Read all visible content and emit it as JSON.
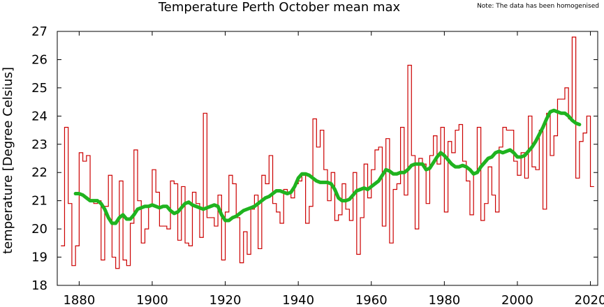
{
  "chart_data": {
    "type": "line",
    "title": "Temperature Perth October mean max",
    "note": "Note: The data has been homogenised",
    "ylabel": "temperature [Degree Celsius]",
    "xlim": [
      1874,
      2022
    ],
    "xticks": [
      1880,
      1900,
      1920,
      1940,
      1960,
      1980,
      2000,
      2020
    ],
    "ylim": [
      18,
      27
    ],
    "yticks": [
      18,
      19,
      20,
      21,
      22,
      23,
      24,
      25,
      26,
      27
    ],
    "series": [
      {
        "style": "step",
        "color": "#cc0000",
        "x": [
          1875,
          1876,
          1877,
          1878,
          1879,
          1880,
          1881,
          1882,
          1883,
          1884,
          1885,
          1886,
          1887,
          1888,
          1889,
          1890,
          1891,
          1892,
          1893,
          1894,
          1895,
          1896,
          1897,
          1898,
          1899,
          1900,
          1901,
          1902,
          1903,
          1904,
          1905,
          1906,
          1907,
          1908,
          1909,
          1910,
          1911,
          1912,
          1913,
          1914,
          1915,
          1916,
          1917,
          1918,
          1919,
          1920,
          1921,
          1922,
          1923,
          1924,
          1925,
          1926,
          1927,
          1928,
          1929,
          1930,
          1931,
          1932,
          1933,
          1934,
          1935,
          1936,
          1937,
          1938,
          1939,
          1940,
          1941,
          1942,
          1943,
          1944,
          1945,
          1946,
          1947,
          1948,
          1949,
          1950,
          1951,
          1952,
          1953,
          1954,
          1955,
          1956,
          1957,
          1958,
          1959,
          1960,
          1961,
          1962,
          1963,
          1964,
          1965,
          1966,
          1967,
          1968,
          1969,
          1970,
          1971,
          1972,
          1973,
          1974,
          1975,
          1976,
          1977,
          1978,
          1979,
          1980,
          1981,
          1982,
          1983,
          1984,
          1985,
          1986,
          1987,
          1988,
          1989,
          1990,
          1991,
          1992,
          1993,
          1994,
          1995,
          1996,
          1997,
          1998,
          1999,
          2000,
          2001,
          2002,
          2003,
          2004,
          2005,
          2006,
          2007,
          2008,
          2009,
          2010,
          2011,
          2012,
          2013,
          2014,
          2015,
          2016,
          2017,
          2018,
          2019,
          2020
        ],
        "values": [
          19.4,
          23.6,
          20.9,
          18.7,
          19.4,
          22.7,
          22.4,
          22.6,
          21.0,
          20.9,
          21.0,
          18.9,
          20.8,
          21.9,
          19.0,
          18.6,
          21.7,
          18.9,
          18.7,
          20.2,
          22.8,
          21.0,
          19.5,
          20.0,
          20.8,
          22.1,
          21.3,
          20.1,
          20.1,
          20.0,
          21.7,
          21.6,
          19.6,
          21.5,
          19.5,
          19.4,
          21.3,
          20.9,
          19.7,
          24.1,
          20.4,
          20.4,
          20.1,
          21.2,
          18.9,
          20.6,
          21.9,
          21.6,
          20.4,
          18.8,
          19.9,
          19.1,
          20.7,
          21.2,
          19.3,
          21.9,
          21.6,
          22.6,
          20.9,
          20.6,
          20.2,
          21.4,
          21.3,
          21.1,
          21.6,
          21.7,
          21.9,
          20.2,
          20.8,
          23.9,
          22.9,
          23.5,
          22.1,
          21.0,
          22.0,
          20.3,
          20.5,
          21.6,
          20.7,
          20.3,
          22.0,
          19.1,
          20.4,
          22.3,
          21.1,
          22.1,
          22.8,
          22.9,
          20.1,
          23.2,
          19.5,
          21.4,
          21.6,
          23.6,
          21.2,
          25.8,
          22.6,
          20.0,
          22.5,
          22.3,
          20.9,
          22.6,
          23.3,
          22.3,
          23.6,
          20.6,
          23.1,
          22.7,
          23.5,
          23.7,
          22.4,
          21.7,
          20.5,
          22.0,
          23.6,
          20.3,
          20.9,
          22.2,
          21.2,
          20.6,
          22.9,
          23.6,
          23.5,
          23.5,
          22.4,
          21.9,
          22.7,
          21.8,
          24.0,
          22.2,
          22.1,
          23.5,
          20.7,
          24.1,
          22.6,
          23.3,
          24.6,
          24.6,
          25.0,
          23.9,
          26.8,
          21.8,
          23.1,
          23.4,
          24.0,
          21.5
        ]
      },
      {
        "style": "smooth",
        "color": "#1fb31f",
        "x": [
          1879,
          1880,
          1881,
          1882,
          1883,
          1884,
          1885,
          1886,
          1887,
          1888,
          1889,
          1890,
          1891,
          1892,
          1893,
          1894,
          1895,
          1896,
          1897,
          1898,
          1899,
          1900,
          1901,
          1902,
          1903,
          1904,
          1905,
          1906,
          1907,
          1908,
          1909,
          1910,
          1911,
          1912,
          1913,
          1914,
          1915,
          1916,
          1917,
          1918,
          1919,
          1920,
          1921,
          1922,
          1923,
          1924,
          1925,
          1926,
          1927,
          1928,
          1929,
          1930,
          1931,
          1932,
          1933,
          1934,
          1935,
          1936,
          1937,
          1938,
          1939,
          1940,
          1941,
          1942,
          1943,
          1944,
          1945,
          1946,
          1947,
          1948,
          1949,
          1950,
          1951,
          1952,
          1953,
          1954,
          1955,
          1956,
          1957,
          1958,
          1959,
          1960,
          1961,
          1962,
          1963,
          1964,
          1965,
          1966,
          1967,
          1968,
          1969,
          1970,
          1971,
          1972,
          1973,
          1974,
          1975,
          1976,
          1977,
          1978,
          1979,
          1980,
          1981,
          1982,
          1983,
          1984,
          1985,
          1986,
          1987,
          1988,
          1989,
          1990,
          1991,
          1992,
          1993,
          1994,
          1995,
          1996,
          1997,
          1998,
          1999,
          2000,
          2001,
          2002,
          2003,
          2004,
          2005,
          2006,
          2007,
          2008,
          2009,
          2010,
          2011,
          2012,
          2013,
          2014,
          2015,
          2016,
          2017
        ],
        "values": [
          21.25,
          21.25,
          21.2,
          21.1,
          21.0,
          21.0,
          21.0,
          20.9,
          20.7,
          20.4,
          20.2,
          20.2,
          20.4,
          20.5,
          20.35,
          20.35,
          20.5,
          20.7,
          20.75,
          20.8,
          20.8,
          20.85,
          20.8,
          20.75,
          20.8,
          20.8,
          20.65,
          20.55,
          20.6,
          20.75,
          20.9,
          20.95,
          20.85,
          20.8,
          20.75,
          20.7,
          20.75,
          20.8,
          20.85,
          20.8,
          20.5,
          20.3,
          20.3,
          20.4,
          20.45,
          20.55,
          20.65,
          20.7,
          20.75,
          20.8,
          20.9,
          21.0,
          21.1,
          21.15,
          21.25,
          21.35,
          21.35,
          21.3,
          21.25,
          21.3,
          21.5,
          21.8,
          21.95,
          21.95,
          21.9,
          21.8,
          21.7,
          21.65,
          21.65,
          21.65,
          21.6,
          21.4,
          21.1,
          21.0,
          21.0,
          21.05,
          21.2,
          21.35,
          21.4,
          21.45,
          21.4,
          21.5,
          21.6,
          21.7,
          21.9,
          22.1,
          22.05,
          21.95,
          21.95,
          22.0,
          22.0,
          22.1,
          22.25,
          22.3,
          22.3,
          22.3,
          22.1,
          22.15,
          22.35,
          22.55,
          22.7,
          22.6,
          22.45,
          22.3,
          22.2,
          22.2,
          22.25,
          22.2,
          22.1,
          21.95,
          22.0,
          22.2,
          22.35,
          22.5,
          22.55,
          22.7,
          22.75,
          22.7,
          22.75,
          22.8,
          22.7,
          22.55,
          22.55,
          22.6,
          22.75,
          22.9,
          23.1,
          23.35,
          23.6,
          23.9,
          24.15,
          24.2,
          24.15,
          24.1,
          24.1,
          24.0,
          23.85,
          23.75,
          23.7
        ]
      }
    ]
  }
}
